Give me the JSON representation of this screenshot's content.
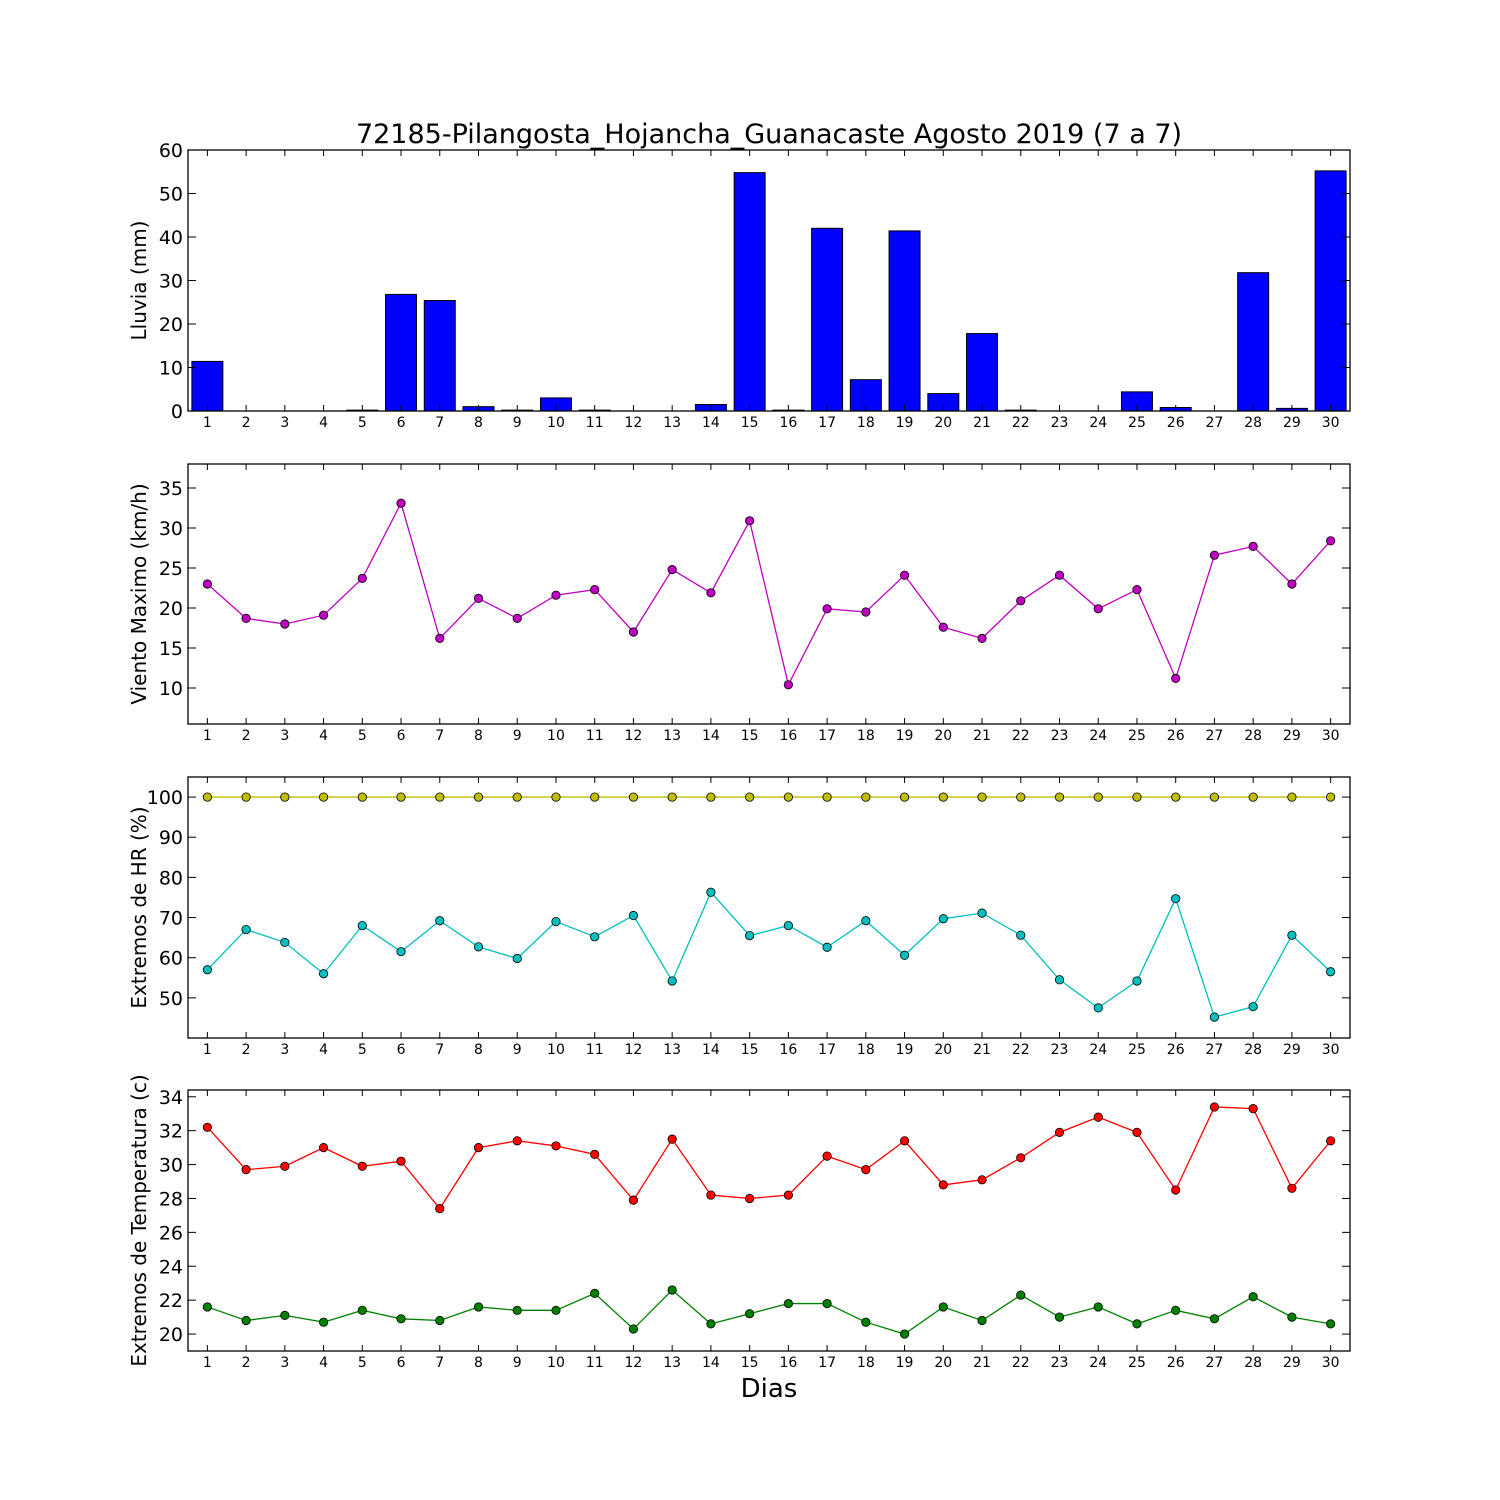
{
  "figure": {
    "title": "72185-Pilangosta_Hojancha_Guanacaste Agosto 2019  (7 a 7)",
    "xlabel": "Dias"
  },
  "chart_data": [
    {
      "type": "bar",
      "id": "lluvia",
      "ylabel": "Lluvia (mm)",
      "ylim": [
        0,
        60
      ],
      "yticks": [
        0,
        10,
        20,
        30,
        40,
        50,
        60
      ],
      "x": [
        1,
        2,
        3,
        4,
        5,
        6,
        7,
        8,
        9,
        10,
        11,
        12,
        13,
        14,
        15,
        16,
        17,
        18,
        19,
        20,
        21,
        22,
        23,
        24,
        25,
        26,
        27,
        28,
        29,
        30
      ],
      "grid": false,
      "series": [
        {
          "color": "#0000ff",
          "values": [
            11.4,
            0,
            0,
            0,
            0.2,
            26.8,
            25.4,
            1.0,
            0.2,
            3.0,
            0.2,
            0,
            0,
            1.5,
            54.8,
            0.2,
            42.0,
            7.2,
            41.4,
            4.0,
            17.8,
            0.2,
            0,
            0,
            4.4,
            0.8,
            0,
            31.8,
            0.6,
            55.2
          ]
        }
      ]
    },
    {
      "type": "line",
      "id": "viento",
      "ylabel": "Viento Maximo (km/h)",
      "ylim": [
        5.5,
        38
      ],
      "yticks": [
        10,
        15,
        20,
        25,
        30,
        35
      ],
      "x": [
        1,
        2,
        3,
        4,
        5,
        6,
        7,
        8,
        9,
        10,
        11,
        12,
        13,
        14,
        15,
        16,
        17,
        18,
        19,
        20,
        21,
        22,
        23,
        24,
        25,
        26,
        27,
        28,
        29,
        30
      ],
      "grid": false,
      "series": [
        {
          "color": "#bf00bf",
          "values": [
            23.0,
            18.7,
            18.0,
            19.1,
            23.7,
            33.1,
            16.2,
            21.2,
            18.7,
            21.6,
            22.3,
            17.0,
            24.8,
            21.9,
            30.9,
            10.4,
            19.9,
            19.5,
            24.1,
            17.6,
            16.2,
            20.9,
            24.1,
            19.9,
            22.3,
            11.2,
            26.6,
            27.7,
            23.0,
            28.4
          ]
        }
      ]
    },
    {
      "type": "line",
      "id": "humedad",
      "ylabel": "Extremos de HR (%)",
      "ylim": [
        40,
        105
      ],
      "yticks": [
        50,
        60,
        70,
        80,
        90,
        100
      ],
      "x": [
        1,
        2,
        3,
        4,
        5,
        6,
        7,
        8,
        9,
        10,
        11,
        12,
        13,
        14,
        15,
        16,
        17,
        18,
        19,
        20,
        21,
        22,
        23,
        24,
        25,
        26,
        27,
        28,
        29,
        30
      ],
      "grid": false,
      "series": [
        {
          "color": "#bfbf00",
          "values": [
            100,
            100,
            100,
            100,
            100,
            100,
            100,
            100,
            100,
            100,
            100,
            100,
            100,
            100,
            100,
            100,
            100,
            100,
            100,
            100,
            100,
            100,
            100,
            100,
            100,
            100,
            100,
            100,
            100,
            100
          ]
        },
        {
          "color": "#00bfbf",
          "values": [
            57,
            67,
            63.8,
            56,
            68,
            61.5,
            69.2,
            62.7,
            59.8,
            69,
            65.2,
            70.5,
            54.2,
            76.3,
            65.5,
            68,
            62.6,
            69.2,
            60.6,
            69.7,
            71.1,
            65.6,
            54.5,
            47.5,
            54.2,
            74.7,
            45.2,
            47.8,
            65.6,
            56.5
          ]
        }
      ]
    },
    {
      "type": "line",
      "id": "temperatura",
      "ylabel": "Extremos de Temperatura (c)",
      "ylim": [
        19,
        34.4
      ],
      "yticks": [
        20,
        22,
        24,
        26,
        28,
        30,
        32,
        34
      ],
      "x": [
        1,
        2,
        3,
        4,
        5,
        6,
        7,
        8,
        9,
        10,
        11,
        12,
        13,
        14,
        15,
        16,
        17,
        18,
        19,
        20,
        21,
        22,
        23,
        24,
        25,
        26,
        27,
        28,
        29,
        30
      ],
      "grid": false,
      "series": [
        {
          "color": "#ff0000",
          "values": [
            32.2,
            29.7,
            29.9,
            31.0,
            29.9,
            30.2,
            27.4,
            31.0,
            31.4,
            31.1,
            30.6,
            27.9,
            31.5,
            28.2,
            28.0,
            28.2,
            30.5,
            29.7,
            31.4,
            28.8,
            29.1,
            30.4,
            31.9,
            32.8,
            31.9,
            28.5,
            33.4,
            33.3,
            28.6,
            31.4
          ]
        },
        {
          "color": "#008000",
          "values": [
            21.6,
            20.8,
            21.1,
            20.7,
            21.4,
            20.9,
            20.8,
            21.6,
            21.4,
            21.4,
            22.4,
            20.3,
            22.6,
            20.6,
            21.2,
            21.8,
            21.8,
            20.7,
            20.0,
            21.6,
            20.8,
            22.3,
            21.0,
            21.6,
            20.6,
            21.4,
            20.9,
            22.2,
            21.0,
            20.6
          ]
        }
      ]
    }
  ]
}
